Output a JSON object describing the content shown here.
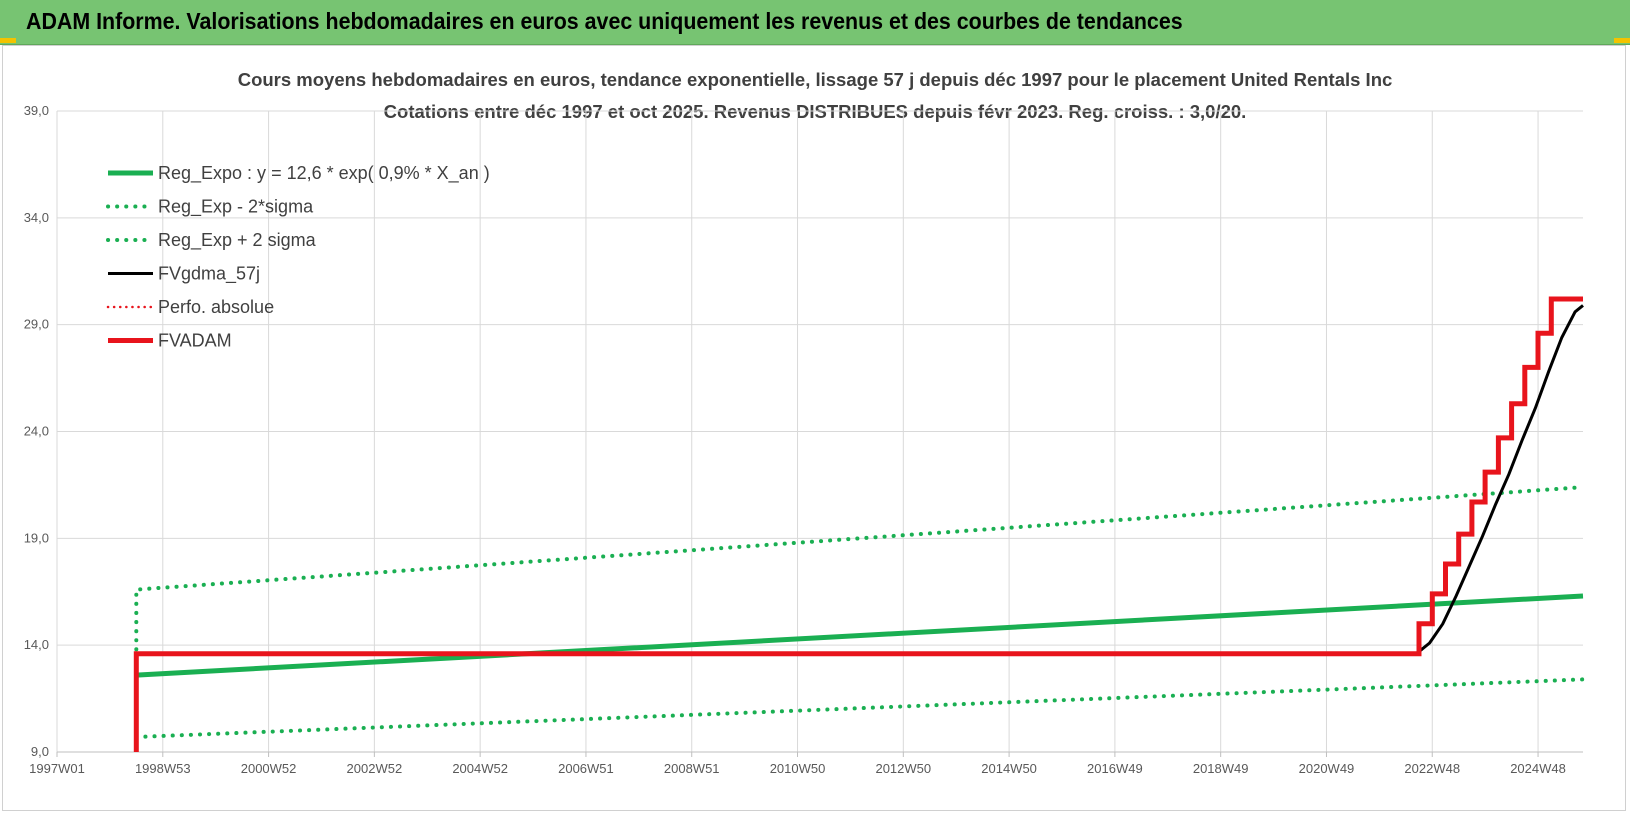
{
  "banner": {
    "title": "ADAM Informe. Valorisations hebdomadaires en euros avec uniquement les revenus et des courbes de tendances"
  },
  "colors": {
    "banner": "#77c472",
    "green": "#1aaf52",
    "black": "#000000",
    "red": "#e8141c"
  },
  "chart_data": {
    "type": "line",
    "title": "Cours moyens hebdomadaires en euros, tendance exponentielle, lissage 57 j depuis déc 1997 pour le placement United Rentals Inc",
    "subtitle": "Cotations entre déc 1997 et oct 2025.  Revenus DISTRIBUES depuis févr 2023.  Reg. croiss. : 3,0/20.",
    "xlabel": "",
    "ylabel": "",
    "x_range": [
      1997.0,
      2025.85
    ],
    "ylim": [
      9.0,
      39.0
    ],
    "y_ticks": [
      9.0,
      14.0,
      19.0,
      24.0,
      29.0,
      34.0,
      39.0
    ],
    "y_tick_labels": [
      "9,0",
      "14,0",
      "19,0",
      "24,0",
      "29,0",
      "34,0",
      "39,0"
    ],
    "x_ticks": [
      1997.0,
      1999.0,
      2001.0,
      2003.0,
      2005.0,
      2007.0,
      2009.0,
      2011.0,
      2013.0,
      2015.0,
      2017.0,
      2019.0,
      2021.0,
      2023.0,
      2025.0
    ],
    "x_tick_labels": [
      "1997W01",
      "1998W53",
      "2000W52",
      "2002W52",
      "2004W52",
      "2006W51",
      "2008W51",
      "2010W50",
      "2012W50",
      "2014W50",
      "2016W49",
      "2018W49",
      "2020W49",
      "2022W48",
      "2024W48"
    ],
    "grid": true,
    "legend_position": "top-left",
    "legend": [
      {
        "label": "Reg_Expo : y = 12,6 * exp( 0,9% *  X_an )",
        "color": "#1aaf52",
        "style": "solid-thick"
      },
      {
        "label": "Reg_Exp - 2*sigma",
        "color": "#1aaf52",
        "style": "dotted"
      },
      {
        "label": "Reg_Exp + 2 sigma",
        "color": "#1aaf52",
        "style": "dotted"
      },
      {
        "label": "FVgdma_57j",
        "color": "#000000",
        "style": "solid"
      },
      {
        "label": "Perfo. absolue",
        "color": "#e8141c",
        "style": "dotted-thin"
      },
      {
        "label": "FVADAM",
        "color": "#e8141c",
        "style": "solid-thick"
      }
    ],
    "series": [
      {
        "name": "Reg_Expo",
        "color": "#1aaf52",
        "style": "solid-thick",
        "x": [
          1998.5,
          2025.85
        ],
        "y": [
          12.6,
          16.3
        ]
      },
      {
        "name": "Reg_Exp - 2*sigma",
        "color": "#1aaf52",
        "style": "dotted",
        "x": [
          1998.5,
          2025.85
        ],
        "y": [
          9.7,
          12.4
        ]
      },
      {
        "name": "Reg_Exp + 2 sigma",
        "color": "#1aaf52",
        "style": "dotted",
        "x": [
          1998.5,
          1998.5,
          2025.85
        ],
        "y": [
          13.8,
          16.6,
          21.4
        ]
      },
      {
        "name": "FVgdma_57j",
        "color": "#000000",
        "style": "solid",
        "x": [
          1998.5,
          2022.7,
          2022.95,
          2023.2,
          2023.45,
          2023.7,
          2023.95,
          2024.2,
          2024.45,
          2024.7,
          2024.95,
          2025.2,
          2025.45,
          2025.7,
          2025.85
        ],
        "y": [
          13.6,
          13.6,
          14.1,
          15.0,
          16.3,
          17.7,
          19.1,
          20.6,
          22.0,
          23.6,
          25.1,
          26.8,
          28.4,
          29.6,
          29.9
        ]
      },
      {
        "name": "FVADAM",
        "color": "#e8141c",
        "style": "solid-thick",
        "x": [
          1998.5,
          1998.5,
          2022.75,
          2022.75,
          2023.0,
          2023.0,
          2023.25,
          2023.25,
          2023.5,
          2023.5,
          2023.75,
          2023.75,
          2024.0,
          2024.0,
          2024.25,
          2024.25,
          2024.5,
          2024.5,
          2024.75,
          2024.75,
          2025.0,
          2025.0,
          2025.25,
          2025.25,
          2025.5,
          2025.5,
          2025.85
        ],
        "y": [
          9.0,
          13.6,
          13.6,
          15.0,
          15.0,
          16.4,
          16.4,
          17.8,
          17.8,
          19.2,
          19.2,
          20.7,
          20.7,
          22.1,
          22.1,
          23.7,
          23.7,
          25.3,
          25.3,
          27.0,
          27.0,
          28.6,
          28.6,
          30.2,
          30.2,
          30.2,
          30.2
        ]
      }
    ]
  }
}
